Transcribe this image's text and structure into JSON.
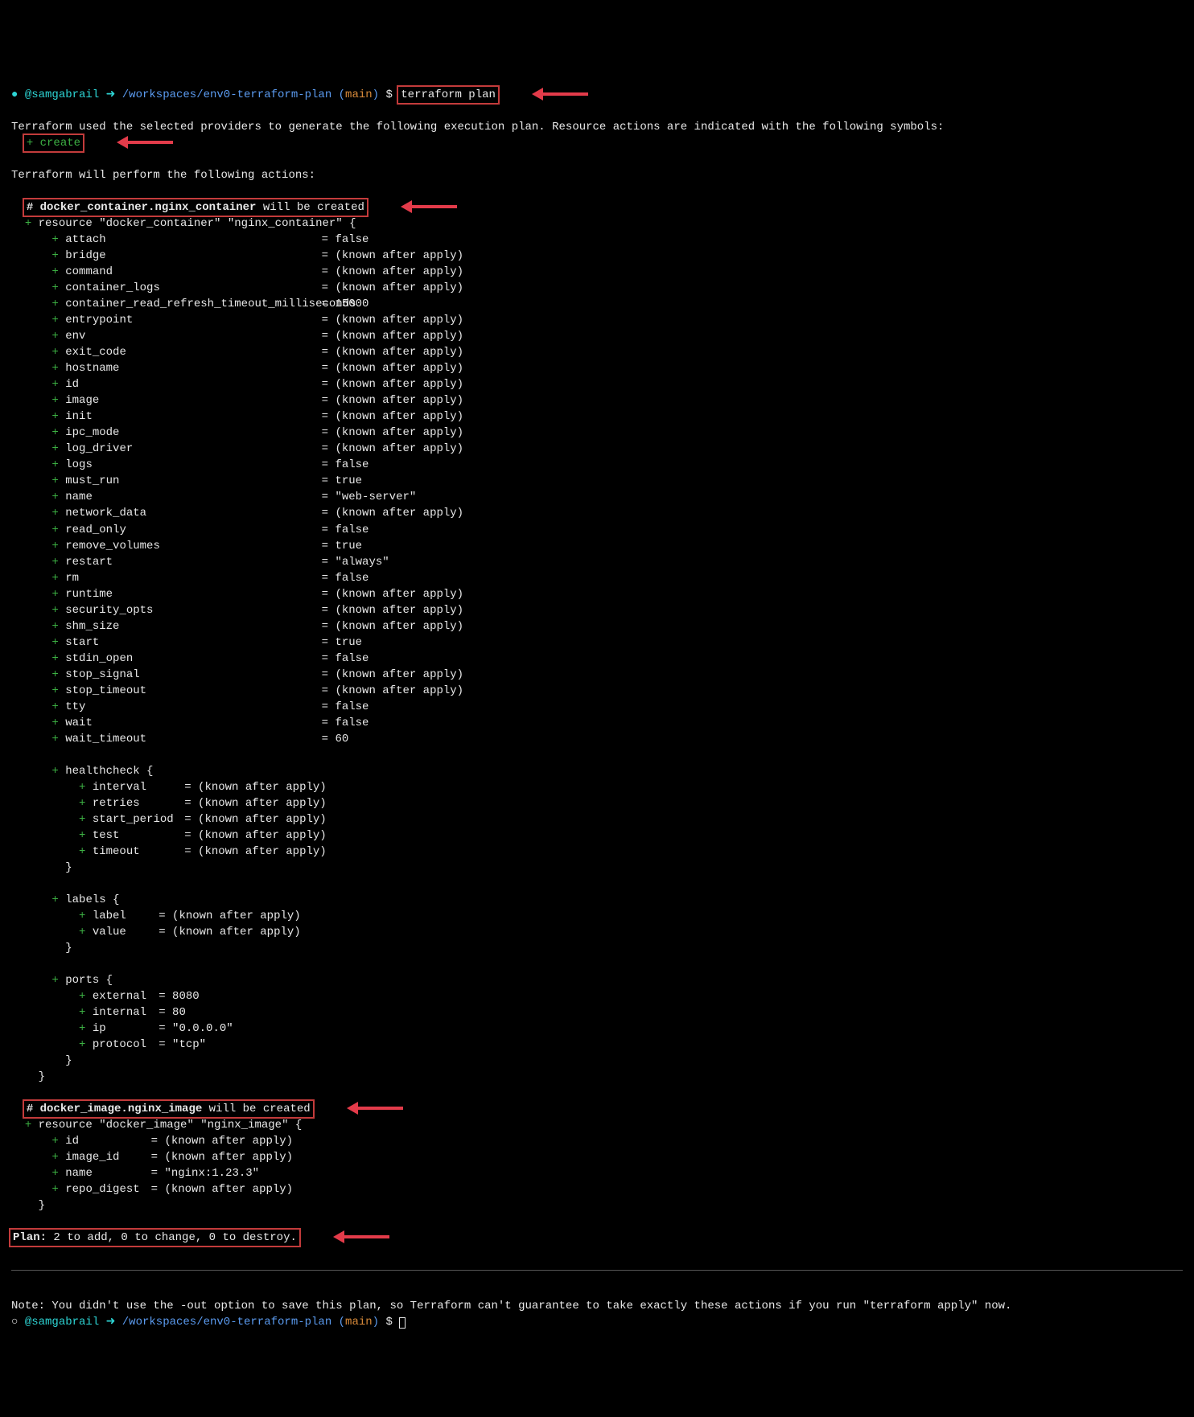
{
  "colors": {
    "background": "#000000",
    "text": "#e8e8e8",
    "cyan": "#2dd4d4",
    "blue": "#5b9bf0",
    "orange": "#d88a3a",
    "green": "#3cb043",
    "boxRed": "#c33b3b",
    "arrowRed": "#e33b4a"
  },
  "prompt": {
    "dot": "●",
    "user": "@samgabrail",
    "arrow": "➜",
    "path": "/workspaces/env0-terraform-plan",
    "branchOpen": "(",
    "branch": "main",
    "branchClose": ")",
    "dollar": "$",
    "cmd": "terraform plan"
  },
  "intro1": "Terraform used the selected providers to generate the following execution plan. Resource actions are indicated with the following symbols:",
  "createSymbol": "+ create",
  "intro2": "Terraform will perform the following actions:",
  "res1": {
    "header": "# docker_container.nginx_container",
    "headerTail": " will be created",
    "decl": "resource \"docker_container\" \"nginx_container\" {",
    "attrs": [
      {
        "k": "attach",
        "v": "false"
      },
      {
        "k": "bridge",
        "v": "(known after apply)"
      },
      {
        "k": "command",
        "v": "(known after apply)"
      },
      {
        "k": "container_logs",
        "v": "(known after apply)"
      },
      {
        "k": "container_read_refresh_timeout_milliseconds",
        "v": "15000"
      },
      {
        "k": "entrypoint",
        "v": "(known after apply)"
      },
      {
        "k": "env",
        "v": "(known after apply)"
      },
      {
        "k": "exit_code",
        "v": "(known after apply)"
      },
      {
        "k": "hostname",
        "v": "(known after apply)"
      },
      {
        "k": "id",
        "v": "(known after apply)"
      },
      {
        "k": "image",
        "v": "(known after apply)"
      },
      {
        "k": "init",
        "v": "(known after apply)"
      },
      {
        "k": "ipc_mode",
        "v": "(known after apply)"
      },
      {
        "k": "log_driver",
        "v": "(known after apply)"
      },
      {
        "k": "logs",
        "v": "false"
      },
      {
        "k": "must_run",
        "v": "true"
      },
      {
        "k": "name",
        "v": "\"web-server\""
      },
      {
        "k": "network_data",
        "v": "(known after apply)"
      },
      {
        "k": "read_only",
        "v": "false"
      },
      {
        "k": "remove_volumes",
        "v": "true"
      },
      {
        "k": "restart",
        "v": "\"always\""
      },
      {
        "k": "rm",
        "v": "false"
      },
      {
        "k": "runtime",
        "v": "(known after apply)"
      },
      {
        "k": "security_opts",
        "v": "(known after apply)"
      },
      {
        "k": "shm_size",
        "v": "(known after apply)"
      },
      {
        "k": "start",
        "v": "true"
      },
      {
        "k": "stdin_open",
        "v": "false"
      },
      {
        "k": "stop_signal",
        "v": "(known after apply)"
      },
      {
        "k": "stop_timeout",
        "v": "(known after apply)"
      },
      {
        "k": "tty",
        "v": "false"
      },
      {
        "k": "wait",
        "v": "false"
      },
      {
        "k": "wait_timeout",
        "v": "60"
      }
    ],
    "healthOpen": "healthcheck {",
    "health": [
      {
        "k": "interval",
        "v": "(known after apply)"
      },
      {
        "k": "retries",
        "v": "(known after apply)"
      },
      {
        "k": "start_period",
        "v": "(known after apply)"
      },
      {
        "k": "test",
        "v": "(known after apply)"
      },
      {
        "k": "timeout",
        "v": "(known after apply)"
      }
    ],
    "labelsOpen": "labels {",
    "labels": [
      {
        "k": "label",
        "v": "(known after apply)"
      },
      {
        "k": "value",
        "v": "(known after apply)"
      }
    ],
    "portsOpen": "ports {",
    "ports": [
      {
        "k": "external",
        "v": "8080"
      },
      {
        "k": "internal",
        "v": "80"
      },
      {
        "k": "ip",
        "v": "\"0.0.0.0\""
      },
      {
        "k": "protocol",
        "v": "\"tcp\""
      }
    ]
  },
  "res2": {
    "header": "# docker_image.nginx_image",
    "headerTail": " will be created",
    "decl": "resource \"docker_image\" \"nginx_image\" {",
    "attrs": [
      {
        "k": "id",
        "v": "(known after apply)"
      },
      {
        "k": "image_id",
        "v": "(known after apply)"
      },
      {
        "k": "name",
        "v": "\"nginx:1.23.3\""
      },
      {
        "k": "repo_digest",
        "v": "(known after apply)"
      }
    ]
  },
  "planLabel": "Plan:",
  "planText": " 2 to add, 0 to change, 0 to destroy.",
  "note": "Note: You didn't use the -out option to save this plan, so Terraform can't guarantee to take exactly these actions if you run \"terraform apply\" now.",
  "prompt2dot": "○",
  "closeBrace": "}"
}
